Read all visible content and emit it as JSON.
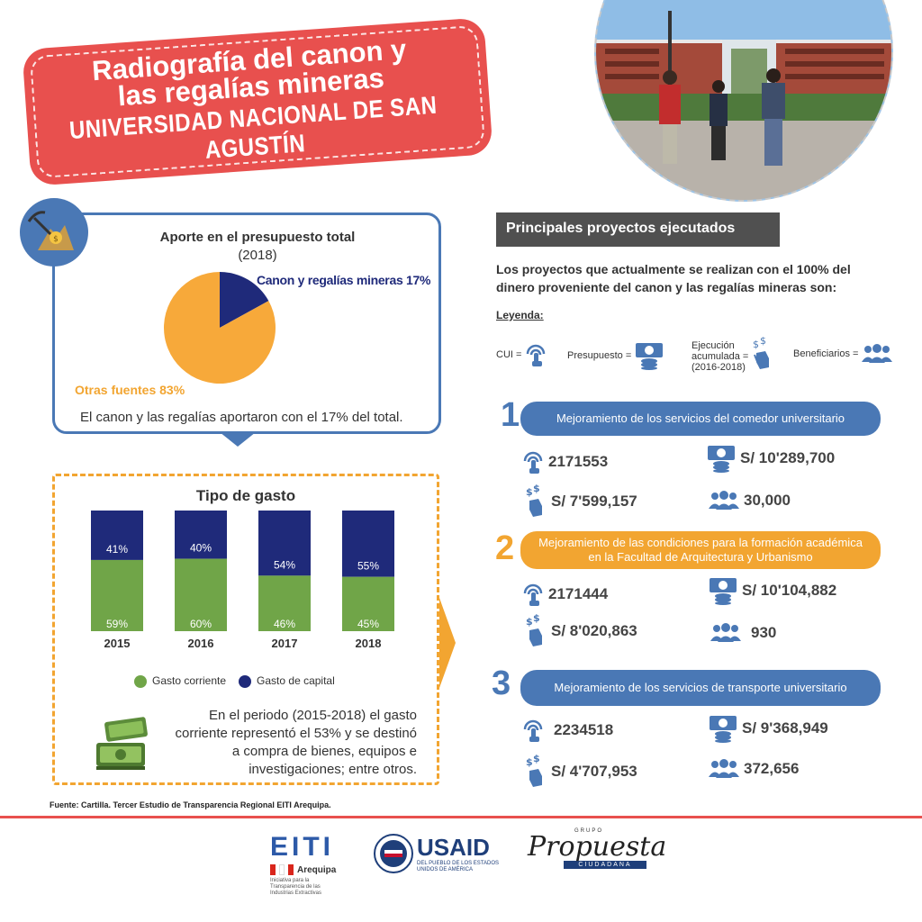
{
  "banner": {
    "title_line1": "Radiografía del canon y",
    "title_line2": "las regalías mineras",
    "subtitle": "UNIVERSIDAD NACIONAL DE SAN AGUSTÍN"
  },
  "pie": {
    "title": "Aporte en el presupuesto total",
    "year": "(2018)",
    "label_canon": "Canon y regalías mineras 17%",
    "label_otras": "Otras fuentes 83%",
    "note": "El canon y  las regalías aportaron con el 17% del total."
  },
  "bars": {
    "title": "Tipo de gasto",
    "legend_corriente": "Gasto corriente",
    "legend_capital": "Gasto de capital",
    "note": "En el periodo (2015-2018) el gasto corriente representó el 53% y se destinó a compra de bienes, equipos e investigaciones; entre otros."
  },
  "chart_data": [
    {
      "type": "pie",
      "title": "Aporte en el presupuesto total",
      "subtitle": "(2018)",
      "slices": [
        {
          "name": "Canon y regalías mineras",
          "value": 17,
          "color": "#1f2a7a"
        },
        {
          "name": "Otras fuentes",
          "value": 83,
          "color": "#f7a93a"
        }
      ]
    },
    {
      "type": "bar",
      "stacked": true,
      "title": "Tipo de gasto",
      "categories": [
        "2015",
        "2016",
        "2017",
        "2018"
      ],
      "series": [
        {
          "name": "Gasto corriente",
          "values": [
            59,
            60,
            46,
            45
          ],
          "color": "#70a548"
        },
        {
          "name": "Gasto de capital",
          "values": [
            41,
            40,
            54,
            55
          ],
          "color": "#1f2a7a"
        }
      ],
      "ylim": [
        0,
        100
      ],
      "legend": "bottom"
    }
  ],
  "projects_section": {
    "header": "Principales proyectos ejecutados",
    "intro": "Los proyectos que actualmente se realizan con el 100% del dinero proveniente del canon y las regalías mineras son:",
    "legend_title": "Leyenda:",
    "legend_cui": "CUI =",
    "legend_presupuesto": "Presupuesto =",
    "legend_ejecucion_1": "Ejecución",
    "legend_ejecucion_2": "acumulada =",
    "legend_ejecucion_3": "(2016-2018)",
    "legend_beneficiarios": "Beneficiarios ="
  },
  "projects": [
    {
      "num": "1",
      "name": "Mejoramiento de los servicios del comedor universitario",
      "color": "#4a78b5",
      "cui": "2171553",
      "presupuesto": "S/ 10'289,700",
      "ejecucion": "S/ 7'599,157",
      "beneficiarios": "30,000"
    },
    {
      "num": "2",
      "name": "Mejoramiento de las condiciones para la formación académica en la Facultad de Arquitectura y Urbanismo",
      "color": "#f2a531",
      "cui": "2171444",
      "presupuesto": "S/ 10'104,882",
      "ejecucion": "S/ 8'020,863",
      "beneficiarios": "930"
    },
    {
      "num": "3",
      "name": "Mejoramiento de los servicios de transporte universitario",
      "color": "#4a78b5",
      "cui": "2234518",
      "presupuesto": "S/ 9'368,949",
      "ejecucion": "S/ 4'707,953",
      "beneficiarios": "372,656"
    }
  ],
  "footer": {
    "source": "Fuente: Cartilla. Tercer Estudio de Transparencia Regional EITI Arequipa.",
    "eiti": "EITI",
    "eiti_region": "Arequipa",
    "eiti_caption": "Iniciativa para la Transparencia de las Industrias Extractivas",
    "usaid": "USAID",
    "usaid_caption_1": "DEL PUEBLO DE LOS ESTADOS",
    "usaid_caption_2": "UNIDOS DE AMÉRICA",
    "prop_grupo": "GRUPO",
    "prop_main": "Propuesta",
    "prop_ciudadana": "CIUDADANA"
  },
  "colors": {
    "red": "#e8504e",
    "blue": "#4a78b5",
    "navy": "#1f2a7a",
    "orange": "#f2a531",
    "green": "#70a548"
  }
}
